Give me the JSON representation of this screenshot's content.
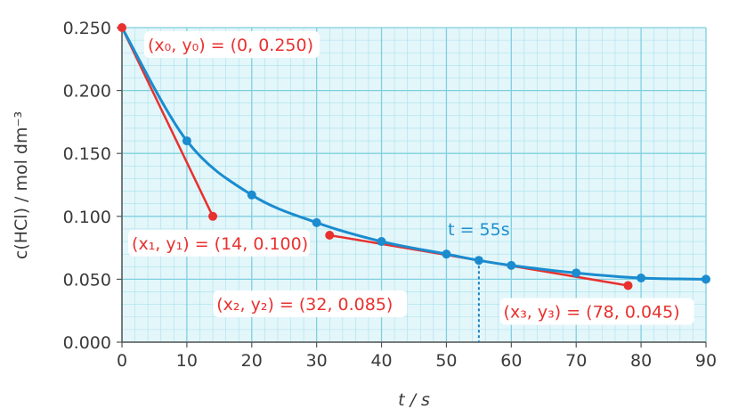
{
  "chart_data": {
    "type": "line",
    "xlabel": "t / s",
    "ylabel": "c(HCl) / mol dm⁻³",
    "x_ticks": [
      "0",
      "10",
      "20",
      "30",
      "40",
      "50",
      "60",
      "70",
      "80",
      "90"
    ],
    "y_ticks": [
      "0.000",
      "0.050",
      "0.100",
      "0.150",
      "0.200",
      "0.250"
    ],
    "xlim": [
      0,
      90
    ],
    "ylim": [
      0,
      0.25
    ],
    "grid": true,
    "series": [
      {
        "x": [
          0,
          10,
          20,
          30,
          40,
          50,
          55,
          60,
          70,
          80,
          90
        ],
        "y": [
          0.25,
          0.16,
          0.117,
          0.095,
          0.08,
          0.07,
          0.065,
          0.061,
          0.055,
          0.051,
          0.05
        ],
        "color": "#1a8ccf"
      }
    ],
    "tangents": [
      {
        "from": [
          0,
          0.25
        ],
        "to": [
          14,
          0.1
        ],
        "color": "#e8312f"
      },
      {
        "from": [
          32,
          0.085
        ],
        "to": [
          78,
          0.045
        ],
        "color": "#e8312f"
      }
    ],
    "annotations": [
      {
        "text": "(x₀, y₀) = (0, 0.250)",
        "x": 0,
        "y": 0.25
      },
      {
        "text": "(x₁, y₁) = (14, 0.100)",
        "x": 14,
        "y": 0.1
      },
      {
        "text": "(x₂, y₂) = (32, 0.085)",
        "x": 32,
        "y": 0.085
      },
      {
        "text": "(x₃, y₃) = (78, 0.045)",
        "x": 78,
        "y": 0.045
      }
    ],
    "marker": {
      "text": "t = 55s",
      "x": 55,
      "y": 0.065
    },
    "colors": {
      "curve": "#1a8ccf",
      "tangent": "#e8312f",
      "grid": "#a8e2ec",
      "background": "#e3f6fa"
    }
  }
}
